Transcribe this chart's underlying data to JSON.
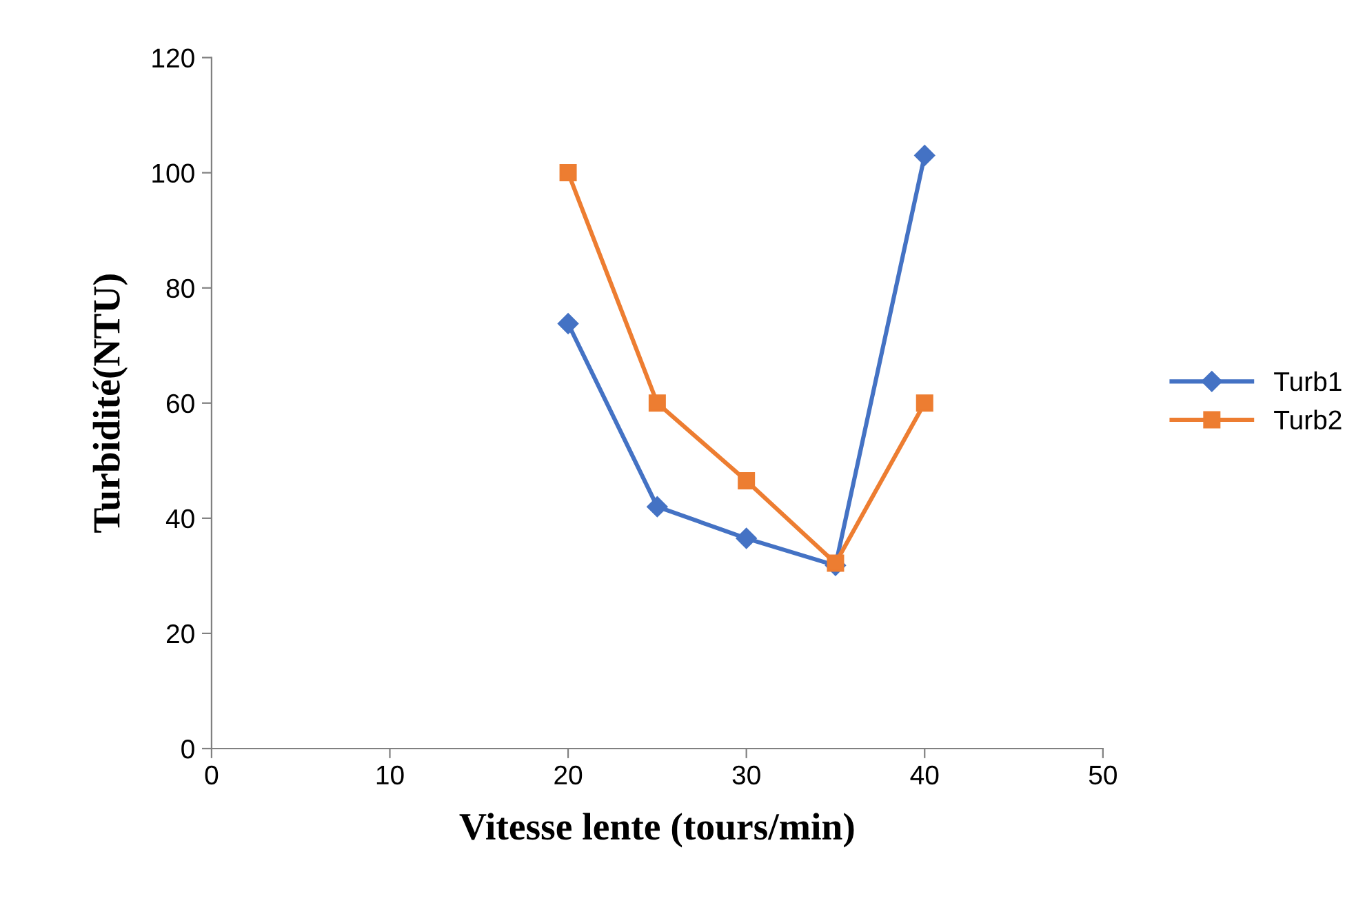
{
  "chart_data": {
    "type": "line",
    "xlabel": "Vitesse lente (tours/min)",
    "ylabel": "Turbidité(NTU)",
    "x": [
      20,
      25,
      30,
      35,
      40
    ],
    "series": [
      {
        "name": "Turb1",
        "color": "#4472c4",
        "marker": "diamond",
        "values": [
          73.8,
          42,
          36.5,
          31.8,
          103
        ]
      },
      {
        "name": "Turb2",
        "color": "#ed7d31",
        "marker": "square",
        "values": [
          100,
          60,
          46.5,
          32.2,
          60
        ]
      }
    ],
    "xlim": [
      0,
      50
    ],
    "xticks": [
      0,
      10,
      20,
      30,
      40,
      50
    ],
    "ylim": [
      0,
      120
    ],
    "yticks": [
      0,
      20,
      40,
      60,
      80,
      100,
      120
    ],
    "grid": false,
    "legend": "right",
    "line_style": "solid"
  }
}
